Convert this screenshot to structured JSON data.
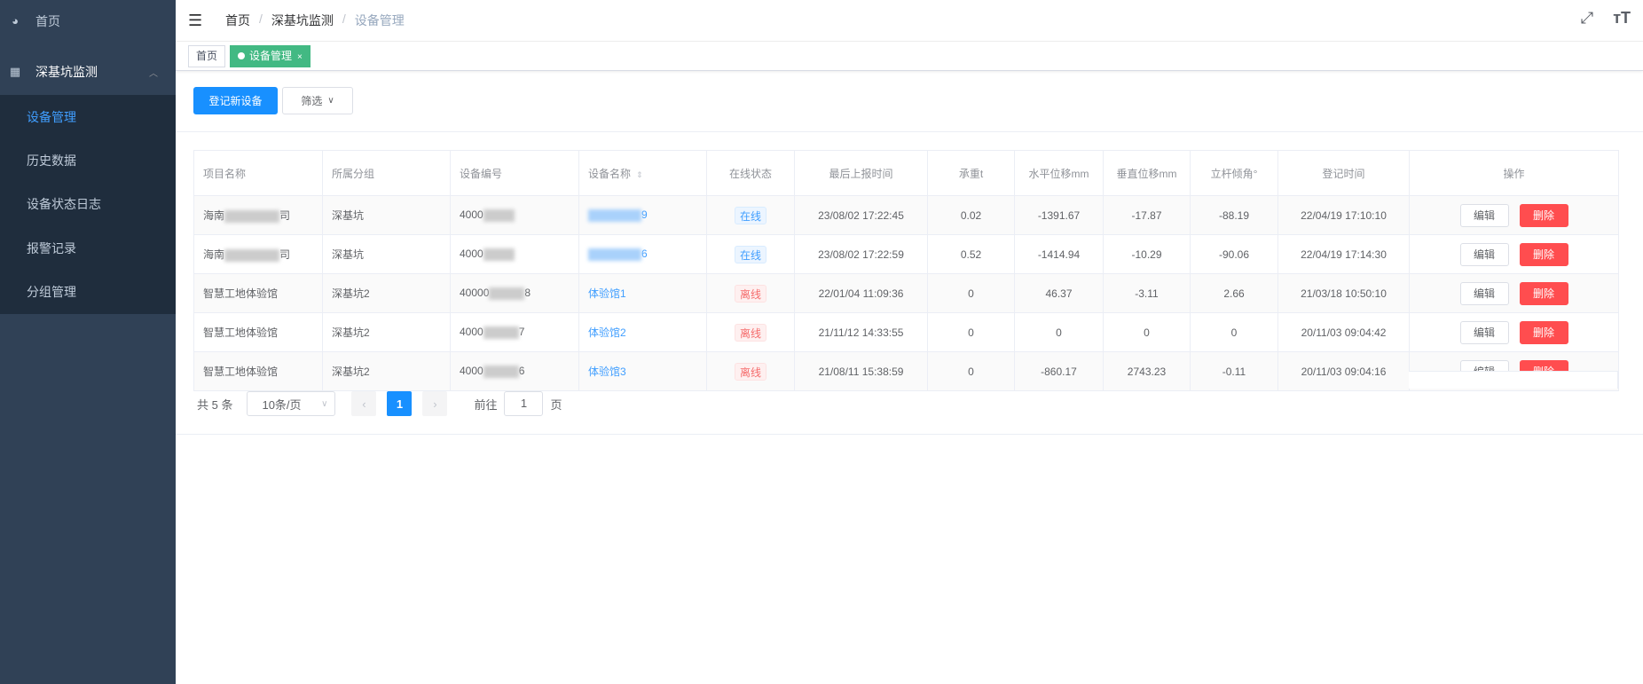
{
  "sidebar": {
    "home": "首页",
    "group": "深基坑监测",
    "items": [
      {
        "label": "设备管理",
        "active": true
      },
      {
        "label": "历史数据"
      },
      {
        "label": "设备状态日志"
      },
      {
        "label": "报警记录"
      },
      {
        "label": "分组管理"
      }
    ]
  },
  "header": {
    "breadcrumb": [
      "首页",
      "深基坑监测",
      "设备管理"
    ],
    "separator": "/"
  },
  "tags": {
    "home": "首页",
    "active": "设备管理",
    "close": "×"
  },
  "toolbar": {
    "register": "登记新设备",
    "filter": "筛选"
  },
  "table": {
    "columns": [
      "项目名称",
      "所属分组",
      "设备编号",
      "设备名称",
      "在线状态",
      "最后上报时间",
      "承重t",
      "水平位移mm",
      "垂直位移mm",
      "立杆倾角°",
      "登记时间",
      "操作"
    ],
    "rows": [
      {
        "project_prefix": "海南",
        "project_suffix": "司",
        "group": "深基坑",
        "code_prefix": "4000",
        "code_suffix": "",
        "name_prefix": "",
        "name_suffix": "9",
        "status": "在线",
        "last": "23/08/02 17:22:45",
        "load": "0.02",
        "h": "-1391.67",
        "v": "-17.87",
        "tilt": "-88.19",
        "reg": "22/04/19 17:10:10"
      },
      {
        "project_prefix": "海南",
        "project_suffix": "司",
        "group": "深基坑",
        "code_prefix": "4000",
        "code_suffix": "",
        "name_prefix": "",
        "name_suffix": "6",
        "status": "在线",
        "last": "23/08/02 17:22:59",
        "load": "0.52",
        "h": "-1414.94",
        "v": "-10.29",
        "tilt": "-90.06",
        "reg": "22/04/19 17:14:30"
      },
      {
        "project_prefix": "智慧工地体验馆",
        "project_suffix": "",
        "group": "深基坑2",
        "code_prefix": "40000",
        "code_suffix": "8",
        "name_prefix": "体验馆1",
        "name_suffix": "",
        "status": "离线",
        "last": "22/01/04 11:09:36",
        "load": "0",
        "h": "46.37",
        "v": "-3.11",
        "tilt": "2.66",
        "reg": "21/03/18 10:50:10"
      },
      {
        "project_prefix": "智慧工地体验馆",
        "project_suffix": "",
        "group": "深基坑2",
        "code_prefix": "4000",
        "code_suffix": "7",
        "name_prefix": "体验馆2",
        "name_suffix": "",
        "status": "离线",
        "last": "21/11/12 14:33:55",
        "load": "0",
        "h": "0",
        "v": "0",
        "tilt": "0",
        "reg": "20/11/03 09:04:42"
      },
      {
        "project_prefix": "智慧工地体验馆",
        "project_suffix": "",
        "group": "深基坑2",
        "code_prefix": "4000",
        "code_suffix": "6",
        "name_prefix": "体验馆3",
        "name_suffix": "",
        "status": "离线",
        "last": "21/08/11 15:38:59",
        "load": "0",
        "h": "-860.17",
        "v": "2743.23",
        "tilt": "-0.11",
        "reg": "20/11/03 09:04:16"
      }
    ],
    "edit": "编辑",
    "delete": "删除"
  },
  "pagination": {
    "total": "共 5 条",
    "page_size": "10条/页",
    "current": "1",
    "goto_label": "前往",
    "goto_value": "1",
    "page_unit": "页"
  },
  "colors": {
    "sidebar": "#304156",
    "submenu": "#1f2d3d",
    "primary": "#1890ff",
    "tag_active": "#42b983",
    "danger": "#ff4d4f"
  }
}
